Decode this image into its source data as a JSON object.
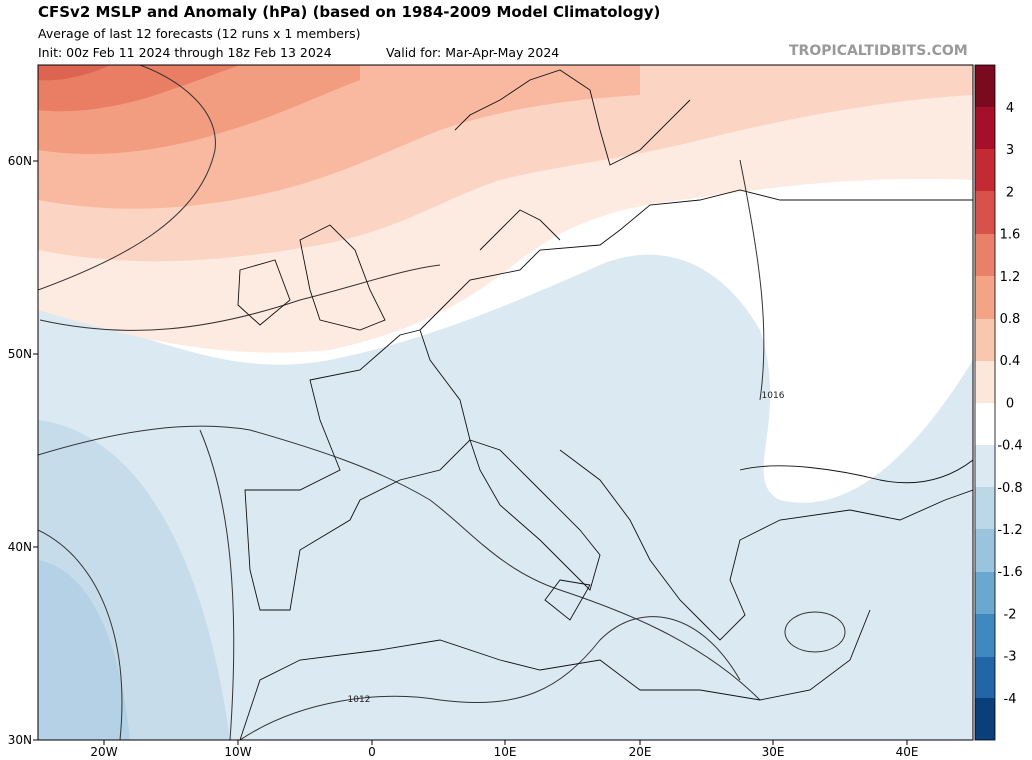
{
  "header": {
    "title": "CFSv2 MSLP and Anomaly (hPa) (based on 1984-2009 Model Climatology)",
    "subtitle": "Average of last 12 forecasts (12 runs x 1 members)",
    "init": "Init: 00z Feb 11 2024 through 18z Feb 13 2024",
    "valid": "Valid for: Mar-Apr-May 2024",
    "brand": "TROPICALTIDBITS.COM"
  },
  "map": {
    "lat_labels": [
      "60N",
      "50N",
      "40N",
      "30N"
    ],
    "lon_labels": [
      "20W",
      "10W",
      "0",
      "10E",
      "20E",
      "30E",
      "40E"
    ],
    "contour_labels": [
      "1016",
      "1012"
    ]
  },
  "colorbar": {
    "labels": [
      "4",
      "3",
      "2",
      "1.6",
      "1.2",
      "0.8",
      "0.4",
      "0",
      "-0.4",
      "-0.8",
      "-1.2",
      "-1.6",
      "-2",
      "-3",
      "-4"
    ]
  }
}
